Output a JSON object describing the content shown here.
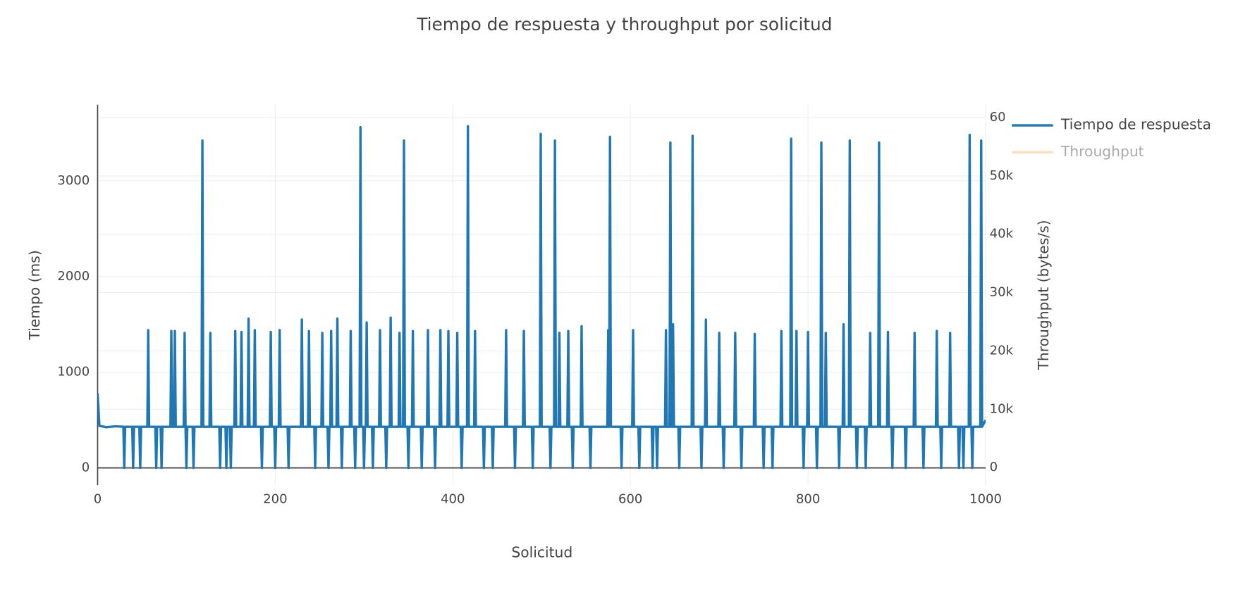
{
  "chart_data": {
    "type": "line",
    "title": "Tiempo de respuesta y throughput por solicitud",
    "xlabel": "Solicitud",
    "ylabel": "Tiempo (ms)",
    "y2label": "Throughput (bytes/s)",
    "xlim": [
      0,
      1000
    ],
    "xticks": [
      0,
      200,
      400,
      600,
      800,
      1000
    ],
    "ylim": [
      -180,
      3795
    ],
    "yticks": [
      0,
      1000,
      2000,
      3000
    ],
    "y2lim": [
      -3000,
      62200
    ],
    "y2ticks": [
      0,
      {
        "value": 10000,
        "label": "10k"
      },
      {
        "value": 20000,
        "label": "20k"
      },
      {
        "value": 30000,
        "label": "30k"
      },
      {
        "value": 40000,
        "label": "40k"
      },
      {
        "value": 50000,
        "label": "50k"
      },
      {
        "value": 60000,
        "label": "60k"
      }
    ],
    "grid": true,
    "legend": "outside-right",
    "x": [
      0,
      2,
      10,
      20,
      29,
      30,
      31,
      39,
      40,
      41,
      47,
      48,
      49,
      56,
      57,
      58,
      65,
      66,
      67,
      71,
      72,
      73,
      82,
      83,
      84,
      86,
      87,
      88,
      97,
      98,
      99,
      100,
      101,
      107,
      108,
      109,
      117,
      118,
      119,
      126,
      127,
      128,
      137,
      138,
      139,
      144,
      145,
      146,
      149,
      150,
      151,
      154,
      155,
      156,
      161,
      162,
      163,
      169,
      170,
      171,
      176,
      177,
      178,
      184,
      185,
      186,
      194,
      195,
      196,
      199,
      200,
      201,
      204,
      205,
      206,
      214,
      215,
      216,
      229,
      230,
      231,
      237,
      238,
      239,
      244,
      245,
      246,
      252,
      253,
      254,
      259,
      260,
      261,
      262,
      263,
      264,
      269,
      270,
      271,
      274,
      275,
      276,
      284,
      285,
      286,
      289,
      290,
      291,
      295,
      296,
      297,
      299,
      300,
      301,
      302,
      303,
      304,
      309,
      310,
      311,
      317,
      318,
      319,
      324,
      325,
      326,
      329,
      330,
      331,
      339,
      340,
      341,
      344,
      345,
      346,
      349,
      350,
      351,
      354,
      355,
      356,
      364,
      365,
      366,
      371,
      372,
      373,
      379,
      380,
      381,
      385,
      386,
      387,
      394,
      395,
      396,
      404,
      405,
      406,
      409,
      410,
      411,
      416,
      417,
      418,
      424,
      425,
      426,
      434,
      435,
      436,
      444,
      445,
      446,
      459,
      460,
      461,
      469,
      470,
      471,
      479,
      480,
      481,
      489,
      490,
      491,
      498,
      499,
      500,
      509,
      510,
      511,
      514,
      515,
      516,
      519,
      520,
      521,
      529,
      530,
      531,
      534,
      535,
      536,
      544,
      545,
      546,
      554,
      555,
      556,
      574,
      575,
      576,
      577,
      578,
      589,
      590,
      591,
      602,
      603,
      604,
      609,
      610,
      611,
      624,
      625,
      626,
      629,
      630,
      631,
      639,
      640,
      641,
      644,
      645,
      646,
      647,
      648,
      649,
      654,
      655,
      656,
      669,
      670,
      671,
      679,
      680,
      681,
      684,
      685,
      686,
      699,
      700,
      701,
      704,
      705,
      706,
      717,
      718,
      719,
      724,
      725,
      726,
      739,
      740,
      741,
      749,
      750,
      751,
      759,
      760,
      761,
      769,
      770,
      771,
      780,
      781,
      782,
      786,
      787,
      788,
      794,
      795,
      796,
      799,
      800,
      801,
      809,
      810,
      811,
      814,
      815,
      816,
      819,
      820,
      821,
      834,
      835,
      836,
      839,
      840,
      841,
      846,
      847,
      848,
      854,
      855,
      856,
      864,
      865,
      866,
      869,
      870,
      871,
      879,
      880,
      881,
      889,
      890,
      891,
      894,
      895,
      896,
      909,
      910,
      911,
      919,
      920,
      921,
      929,
      930,
      931,
      944,
      945,
      946,
      949,
      950,
      951,
      959,
      960,
      961,
      969,
      970,
      971,
      974,
      975,
      976,
      981,
      982,
      983,
      984,
      985,
      986,
      994,
      995,
      996,
      1000
    ],
    "series": [
      {
        "name": "Tiempo de respuesta",
        "color": "#1f77b4",
        "axis": "y",
        "values": [
          780,
          440,
          425,
          435,
          430,
          0,
          430,
          430,
          0,
          430,
          430,
          0,
          430,
          430,
          1440,
          430,
          430,
          0,
          430,
          430,
          0,
          430,
          430,
          1430,
          430,
          430,
          1430,
          430,
          430,
          1410,
          430,
          0,
          430,
          430,
          0,
          430,
          430,
          3420,
          430,
          430,
          1410,
          430,
          430,
          0,
          430,
          430,
          0,
          430,
          430,
          0,
          430,
          430,
          1430,
          430,
          430,
          1420,
          430,
          430,
          1560,
          430,
          430,
          1440,
          430,
          430,
          0,
          430,
          430,
          1420,
          430,
          430,
          0,
          430,
          430,
          1440,
          430,
          430,
          0,
          430,
          430,
          1550,
          430,
          430,
          1430,
          430,
          430,
          0,
          430,
          430,
          1410,
          430,
          430,
          0,
          430,
          430,
          1430,
          430,
          430,
          1560,
          430,
          430,
          0,
          430,
          430,
          1430,
          430,
          430,
          0,
          430,
          430,
          3560,
          430,
          430,
          0,
          430,
          430,
          1520,
          430,
          430,
          0,
          430,
          430,
          1440,
          430,
          430,
          0,
          430,
          430,
          1570,
          430,
          430,
          1410,
          430,
          430,
          3420,
          430,
          430,
          0,
          430,
          430,
          1430,
          430,
          430,
          0,
          430,
          430,
          1440,
          430,
          430,
          0,
          430,
          430,
          1440,
          430,
          430,
          1430,
          430,
          430,
          1410,
          430,
          430,
          0,
          430,
          430,
          3570,
          430,
          430,
          1430,
          430,
          430,
          0,
          430,
          430,
          0,
          430,
          430,
          1440,
          430,
          430,
          0,
          430,
          430,
          1430,
          430,
          430,
          0,
          430,
          430,
          3490,
          430,
          430,
          0,
          430,
          430,
          3420,
          430,
          430,
          1410,
          430,
          430,
          1430,
          430,
          430,
          0,
          430,
          430,
          1480,
          430,
          430,
          0,
          430,
          430,
          1440,
          430,
          3460,
          430,
          430,
          0,
          430,
          430,
          1440,
          430,
          430,
          0,
          430,
          430,
          0,
          430,
          430,
          0,
          430,
          430,
          1440,
          430,
          430,
          3400,
          430,
          430,
          1500,
          430,
          430,
          0,
          430,
          430,
          3470,
          430,
          430,
          0,
          430,
          430,
          1550,
          430,
          430,
          1410,
          430,
          430,
          0,
          430,
          430,
          1410,
          430,
          430,
          0,
          430,
          430,
          1400,
          430,
          430,
          0,
          430,
          430,
          0,
          430,
          430,
          1430,
          430,
          430,
          3440,
          430,
          430,
          1430,
          430,
          430,
          0,
          430,
          430,
          1420,
          430,
          430,
          0,
          430,
          430,
          3400,
          430,
          430,
          1410,
          430,
          430,
          0,
          430,
          430,
          1500,
          430,
          430,
          3420,
          430,
          430,
          0,
          430,
          430,
          0,
          430,
          430,
          1410,
          430,
          430,
          3400,
          430,
          430,
          1420,
          430,
          430,
          0,
          430,
          430,
          0,
          430,
          430,
          1410,
          430,
          430,
          0,
          430,
          430,
          1430,
          430,
          430,
          0,
          430,
          430,
          1410,
          430,
          430,
          0,
          430,
          430,
          0,
          430,
          430,
          3480,
          430,
          430,
          0,
          430,
          430,
          3420,
          430,
          500
        ]
      },
      {
        "name": "Throughput",
        "color": "#ffbb78",
        "axis": "y2",
        "visible": "legendonly"
      }
    ]
  }
}
